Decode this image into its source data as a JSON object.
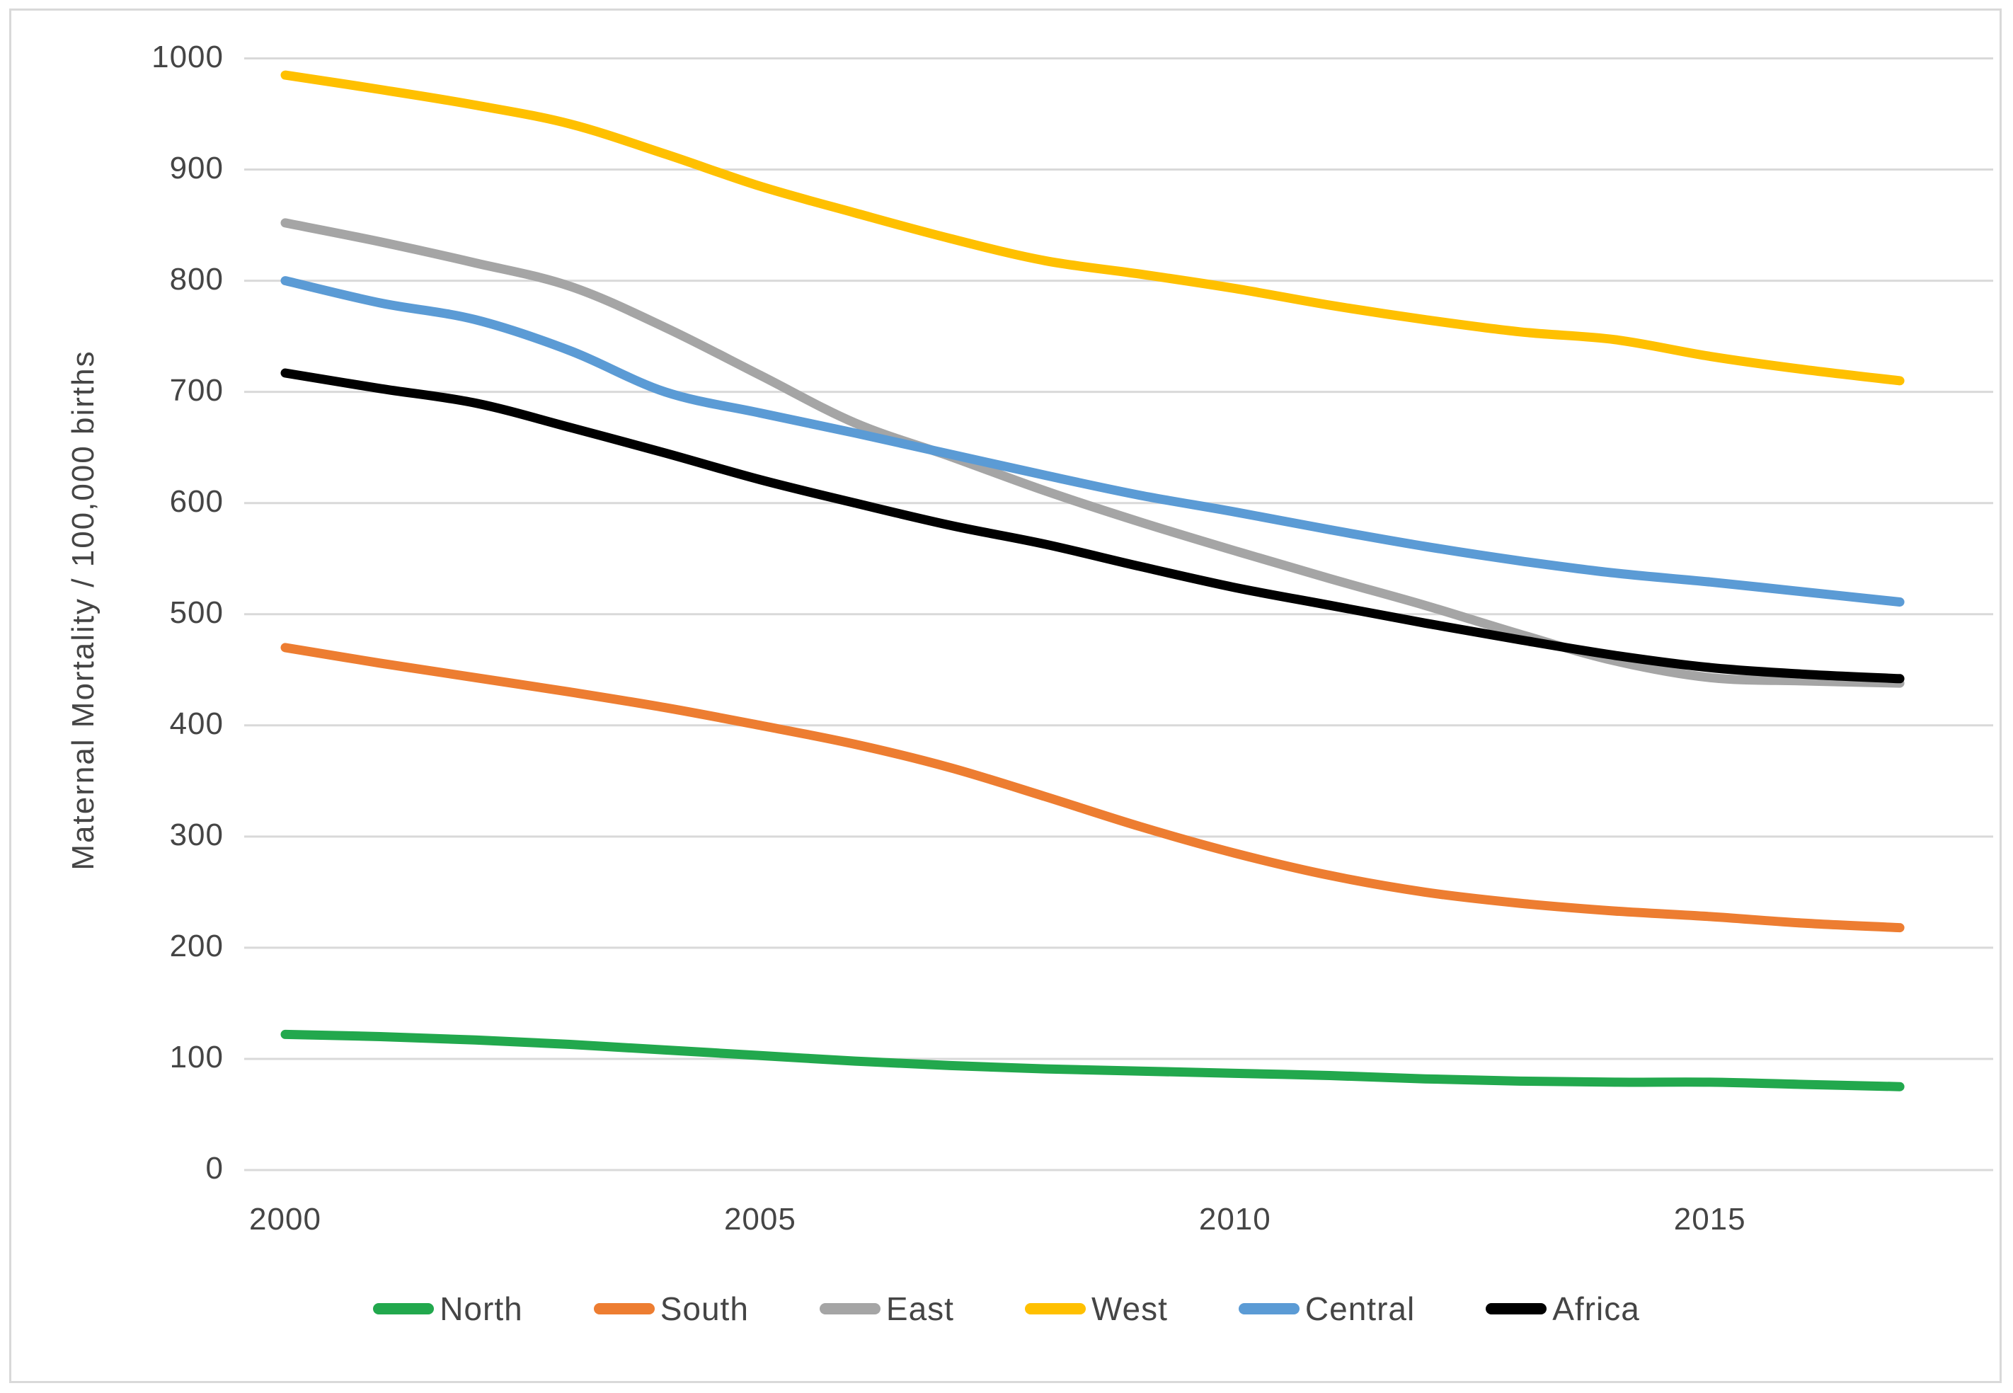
{
  "chart_data": {
    "type": "line",
    "title": "",
    "xlabel": "",
    "ylabel": "Maternal Mortality / 100,000 births",
    "x": [
      2000,
      2001,
      2002,
      2003,
      2004,
      2005,
      2006,
      2007,
      2008,
      2009,
      2010,
      2011,
      2012,
      2013,
      2014,
      2015,
      2016,
      2017
    ],
    "x_tick_years": [
      2000,
      2005,
      2010,
      2015
    ],
    "x_tick_labels": [
      "2000",
      "2005",
      "2010",
      "2015"
    ],
    "y_ticks": [
      0,
      100,
      200,
      300,
      400,
      500,
      600,
      700,
      800,
      900,
      1000
    ],
    "y_tick_labels": [
      "0",
      "100",
      "200",
      "300",
      "400",
      "500",
      "600",
      "700",
      "800",
      "900",
      "1000"
    ],
    "ylim": [
      0,
      1000
    ],
    "xlim": [
      2000,
      2017
    ],
    "grid": "horizontal",
    "gridline_color": "#d9d9d9",
    "line_style": "smooth",
    "legend_position": "bottom",
    "series": [
      {
        "name": "North",
        "color": "#22A84D",
        "values": [
          122,
          120,
          117,
          113,
          108,
          103,
          98,
          94,
          91,
          89,
          87,
          85,
          82,
          80,
          79,
          79,
          77,
          75
        ]
      },
      {
        "name": "South",
        "color": "#ED7D31",
        "values": [
          470,
          456,
          443,
          430,
          416,
          400,
          383,
          362,
          336,
          309,
          285,
          265,
          250,
          240,
          233,
          228,
          222,
          218
        ]
      },
      {
        "name": "East",
        "color": "#A5A5A5",
        "values": [
          852,
          835,
          816,
          795,
          758,
          715,
          672,
          642,
          611,
          583,
          557,
          532,
          508,
          482,
          458,
          443,
          440,
          438
        ]
      },
      {
        "name": "West",
        "color": "#FFC000",
        "values": [
          985,
          972,
          958,
          941,
          914,
          885,
          861,
          838,
          818,
          806,
          793,
          778,
          765,
          754,
          747,
          732,
          720,
          710
        ]
      },
      {
        "name": "Central",
        "color": "#5B9BD5",
        "values": [
          800,
          780,
          765,
          737,
          700,
          681,
          663,
          644,
          625,
          607,
          592,
          576,
          561,
          548,
          537,
          529,
          520,
          511
        ]
      },
      {
        "name": "Africa",
        "color": "#000000",
        "values": [
          717,
          703,
          690,
          668,
          645,
          621,
          600,
          580,
          563,
          543,
          524,
          508,
          492,
          477,
          463,
          452,
          446,
          442
        ]
      }
    ]
  }
}
